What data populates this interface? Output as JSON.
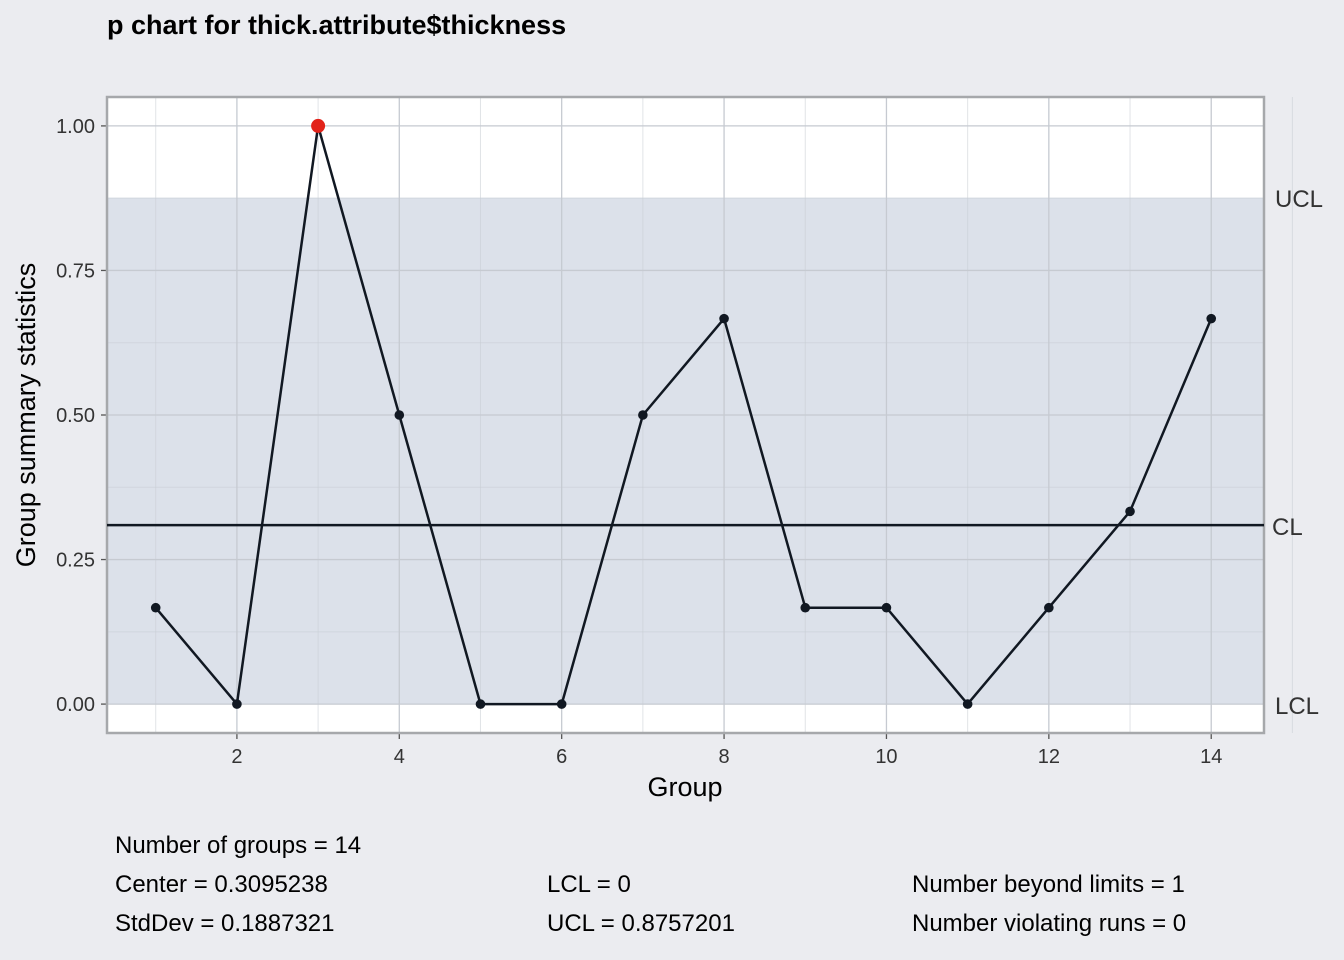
{
  "chart_data": {
    "type": "line",
    "subtype": "p-chart",
    "title": "p chart for thick.attribute$thickness",
    "xlabel": "Group",
    "ylabel": "Group summary statistics",
    "x": [
      1,
      2,
      3,
      4,
      5,
      6,
      7,
      8,
      9,
      10,
      11,
      12,
      13,
      14
    ],
    "values": [
      0.1667,
      0.0,
      1.0,
      0.5,
      0.0,
      0.0,
      0.5,
      0.6667,
      0.1667,
      0.1667,
      0.0,
      0.1667,
      0.3333,
      0.6667
    ],
    "out_of_control_groups": [
      3
    ],
    "x_ticks": [
      "2",
      "4",
      "6",
      "8",
      "10",
      "12",
      "14"
    ],
    "y_ticks": [
      "0.00",
      "0.25",
      "0.50",
      "0.75",
      "1.00"
    ],
    "xlim": [
      0.4,
      14.65
    ],
    "ylim": [
      -0.05,
      1.05
    ],
    "center_line": 0.3095238,
    "lcl": 0,
    "ucl": 0.8757201,
    "limit_labels": {
      "ucl": "UCL",
      "cl": "CL",
      "lcl": "LCL"
    },
    "grid": true,
    "colors": {
      "background": "#ebecf0",
      "panel": "#ffffff",
      "control_band": "#dce1ea",
      "line": "#111822",
      "violation": "#e2231a"
    }
  },
  "stats": {
    "num_groups": "Number of groups = 14",
    "center": "Center = 0.3095238",
    "stddev": "StdDev = 0.1887321",
    "lcl": "LCL = 0",
    "ucl": "UCL = 0.8757201",
    "beyond_limits": "Number beyond limits = 1",
    "violating_runs": "Number violating runs = 0"
  }
}
